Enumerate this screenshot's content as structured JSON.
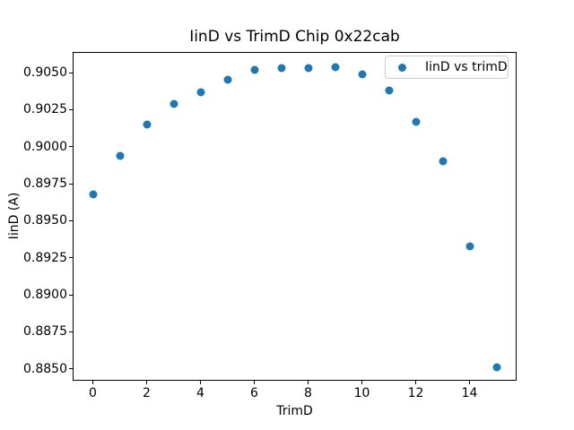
{
  "figure": {
    "background": "#ffffff",
    "spine_color": "#000000",
    "text_color": "#000000"
  },
  "chart_data": {
    "type": "scatter",
    "title": "IinD vs TrimD Chip 0x22cab",
    "xlabel": "TrimD",
    "ylabel": "IinD (A)",
    "legend": {
      "label": "IinD vs trimD",
      "position": "upper right",
      "border_color": "#cccccc"
    },
    "marker_color": "#1f77b4",
    "grid": false,
    "x": [
      0,
      1,
      2,
      3,
      4,
      5,
      6,
      7,
      8,
      9,
      10,
      11,
      12,
      13,
      14,
      15
    ],
    "y": [
      0.8968,
      0.8994,
      0.9015,
      0.9029,
      0.9037,
      0.9045,
      0.9052,
      0.9053,
      0.9053,
      0.9054,
      0.9049,
      0.9038,
      0.9017,
      0.899,
      0.8933,
      0.8851
    ],
    "xlim": [
      -0.75,
      15.75
    ],
    "ylim": [
      0.8842,
      0.9064
    ],
    "xticks": [
      0,
      2,
      4,
      6,
      8,
      10,
      12,
      14
    ],
    "xtick_labels": [
      "0",
      "2",
      "4",
      "6",
      "8",
      "10",
      "12",
      "14"
    ],
    "yticks": [
      0.885,
      0.8875,
      0.89,
      0.8925,
      0.895,
      0.8975,
      0.9,
      0.9025,
      0.905
    ],
    "ytick_labels": [
      "0.8850",
      "0.8875",
      "0.8900",
      "0.8925",
      "0.8950",
      "0.8975",
      "0.9000",
      "0.9025",
      "0.9050"
    ]
  }
}
